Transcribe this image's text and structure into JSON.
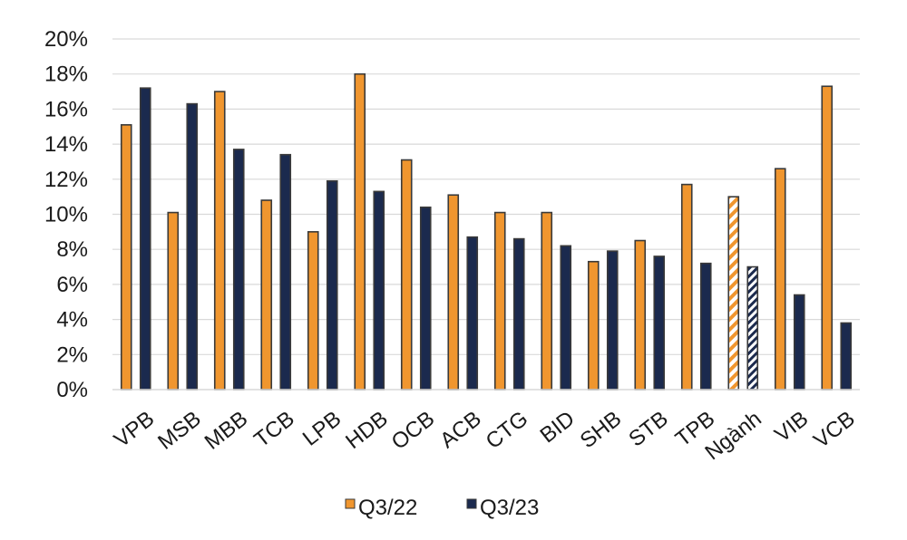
{
  "chart_data": {
    "type": "bar",
    "title": "",
    "xlabel": "",
    "ylabel": "",
    "ylim": [
      0,
      20
    ],
    "y_ticks": [
      "0%",
      "2%",
      "4%",
      "6%",
      "8%",
      "10%",
      "12%",
      "14%",
      "16%",
      "18%",
      "20%"
    ],
    "y_tick_values": [
      0,
      2,
      4,
      6,
      8,
      10,
      12,
      14,
      16,
      18,
      20
    ],
    "grid": "horizontal",
    "legend_position": "bottom",
    "categories": [
      "VPB",
      "MSB",
      "MBB",
      "TCB",
      "LPB",
      "HDB",
      "OCB",
      "ACB",
      "CTG",
      "BID",
      "SHB",
      "STB",
      "TPB",
      "Ngành",
      "VIB",
      "VCB"
    ],
    "highlight_category": "Ngành",
    "series": [
      {
        "name": "Q3/22",
        "color": "#F0962F",
        "values": [
          15.1,
          10.1,
          17.0,
          10.8,
          9.0,
          18.0,
          13.1,
          11.1,
          10.1,
          10.1,
          7.3,
          8.5,
          11.7,
          11.0,
          12.6,
          17.3
        ]
      },
      {
        "name": "Q3/23",
        "color": "#1B2A4E",
        "values": [
          17.2,
          16.3,
          13.7,
          13.4,
          11.9,
          11.3,
          10.4,
          8.7,
          8.6,
          8.2,
          7.9,
          7.6,
          7.2,
          7.0,
          5.4,
          3.8
        ]
      }
    ]
  }
}
